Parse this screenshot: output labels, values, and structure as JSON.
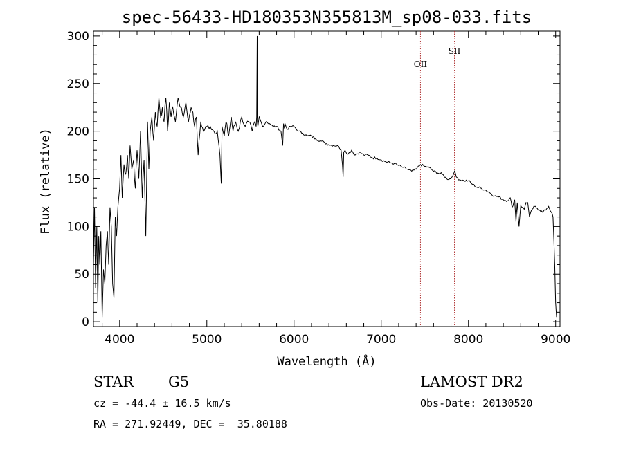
{
  "chart_data": {
    "type": "line",
    "title": "spec-56433-HD180353N355813M_sp08-033.fits",
    "xlabel": "Wavelength (Å)",
    "ylabel": "Flux (relative)",
    "xlim": [
      3700,
      9050
    ],
    "ylim": [
      -5,
      305
    ],
    "xticks": [
      "4000",
      "5000",
      "6000",
      "7000",
      "8000",
      "9000"
    ],
    "yticks": [
      "0",
      "50",
      "100",
      "150",
      "200",
      "250",
      "300"
    ],
    "lines": [
      {
        "label": "OII",
        "x": 7450,
        "color": "#b03030"
      },
      {
        "label": "SII",
        "x": 7840,
        "color": "#b03030"
      }
    ],
    "series": [
      {
        "color": "#000000",
        "x": [
          3700,
          3712,
          3725,
          3738,
          3750,
          3760,
          3772,
          3785,
          3800,
          3815,
          3830,
          3845,
          3860,
          3875,
          3890,
          3905,
          3920,
          3935,
          3950,
          3965,
          3980,
          4000,
          4015,
          4030,
          4050,
          4070,
          4090,
          4105,
          4120,
          4140,
          4160,
          4180,
          4200,
          4220,
          4240,
          4260,
          4280,
          4300,
          4320,
          4335,
          4350,
          4370,
          4390,
          4410,
          4430,
          4450,
          4470,
          4490,
          4510,
          4530,
          4550,
          4570,
          4590,
          4610,
          4640,
          4670,
          4700,
          4730,
          4760,
          4790,
          4820,
          4840,
          4860,
          4880,
          4900,
          4930,
          4960,
          5000,
          5040,
          5080,
          5120,
          5150,
          5165,
          5175,
          5185,
          5200,
          5220,
          5250,
          5280,
          5300,
          5330,
          5360,
          5400,
          5440,
          5480,
          5520,
          5550,
          5565,
          5572,
          5577,
          5580,
          5585,
          5600,
          5640,
          5680,
          5720,
          5760,
          5800,
          5850,
          5870,
          5880,
          5890,
          5900,
          5920,
          5960,
          6000,
          6050,
          6100,
          6150,
          6200,
          6250,
          6300,
          6350,
          6400,
          6450,
          6500,
          6540,
          6555,
          6563,
          6570,
          6585,
          6620,
          6660,
          6700,
          6750,
          6800,
          6850,
          6900,
          6950,
          7000,
          7050,
          7100,
          7150,
          7200,
          7250,
          7300,
          7350,
          7400,
          7450,
          7500,
          7550,
          7600,
          7650,
          7700,
          7750,
          7800,
          7840,
          7860,
          7900,
          7950,
          8000,
          8050,
          8100,
          8150,
          8200,
          8250,
          8300,
          8350,
          8400,
          8450,
          8480,
          8500,
          8530,
          8545,
          8560,
          8580,
          8600,
          8620,
          8640,
          8660,
          8680,
          8700,
          8730,
          8760,
          8790,
          8820,
          8850,
          8880,
          8900,
          8920,
          8950,
          8970,
          8990,
          9000,
          9010
        ],
        "y": [
          60,
          120,
          35,
          100,
          20,
          90,
          60,
          95,
          5,
          55,
          40,
          80,
          95,
          60,
          120,
          100,
          40,
          25,
          110,
          90,
          120,
          140,
          175,
          130,
          165,
          155,
          175,
          150,
          185,
          160,
          170,
          140,
          180,
          150,
          200,
          130,
          170,
          90,
          210,
          160,
          200,
          215,
          190,
          220,
          205,
          235,
          215,
          225,
          210,
          235,
          200,
          230,
          215,
          225,
          210,
          235,
          225,
          215,
          230,
          210,
          225,
          220,
          205,
          215,
          175,
          210,
          200,
          205,
          205,
          200,
          200,
          175,
          145,
          205,
          200,
          195,
          210,
          195,
          215,
          200,
          210,
          200,
          215,
          205,
          210,
          200,
          210,
          205,
          215,
          300,
          210,
          205,
          215,
          205,
          210,
          208,
          205,
          205,
          200,
          185,
          208,
          203,
          207,
          202,
          205,
          205,
          200,
          198,
          195,
          195,
          192,
          190,
          188,
          186,
          185,
          185,
          180,
          165,
          152,
          178,
          180,
          176,
          180,
          175,
          178,
          175,
          175,
          172,
          172,
          170,
          168,
          167,
          166,
          164,
          162,
          160,
          158,
          160,
          165,
          163,
          162,
          158,
          156,
          155,
          150,
          150,
          158,
          152,
          149,
          148,
          148,
          144,
          141,
          140,
          138,
          135,
          132,
          131,
          128,
          127,
          130,
          120,
          128,
          105,
          125,
          100,
          122,
          120,
          118,
          125,
          125,
          110,
          118,
          121,
          119,
          117,
          115,
          117,
          119,
          121,
          115,
          110,
          60,
          20,
          5
        ]
      }
    ]
  },
  "info": {
    "class_label": "STAR",
    "subclass": "G5",
    "survey": "LAMOST DR2",
    "redshift": "cz = -44.4 ± 16.5 km/s",
    "obs_date": "Obs-Date: 20130520",
    "coords": "RA = 271.92449, DEC =  35.80188"
  }
}
